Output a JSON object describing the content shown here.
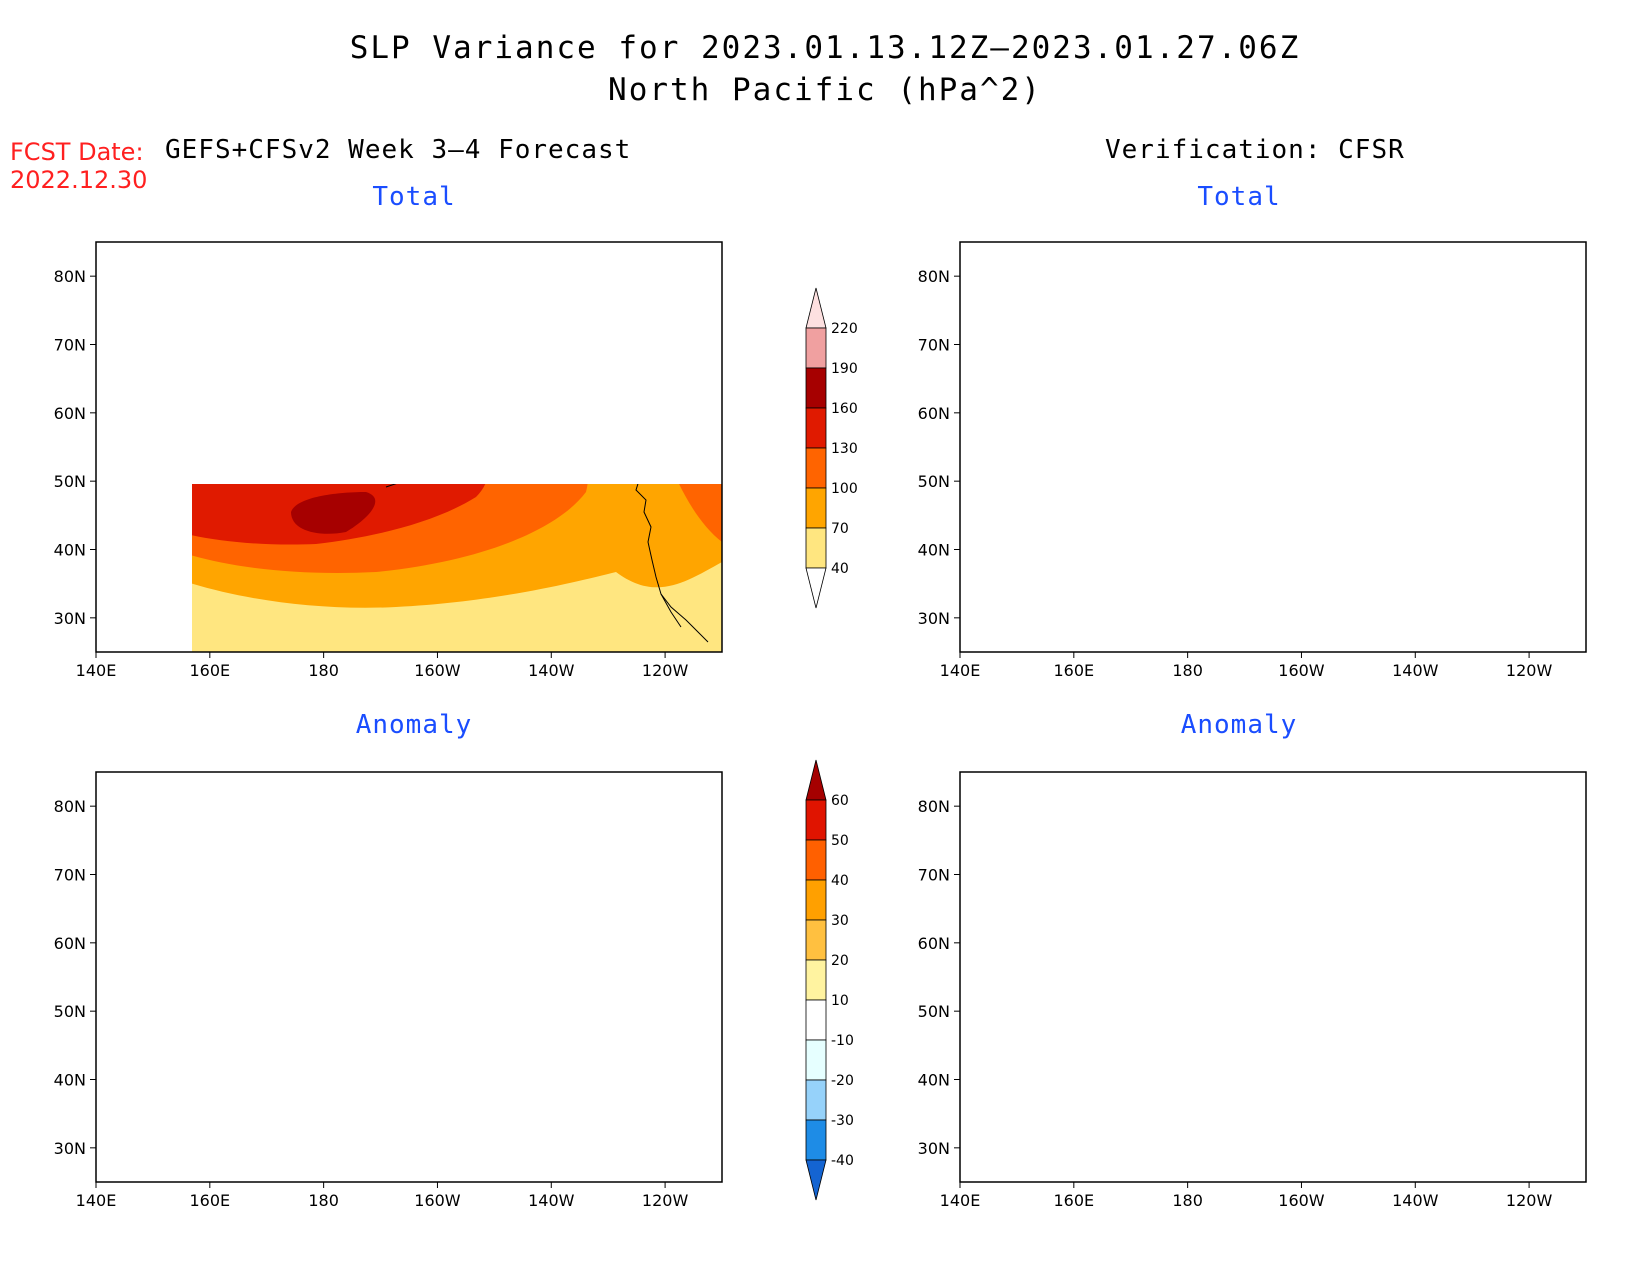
{
  "header": {
    "title_line1": "SLP Variance for 2023.01.13.12Z–2023.01.27.06Z",
    "title_line2": "North Pacific (hPa^2)",
    "fcst_label": "FCST Date:",
    "fcst_date": "2022.12.30"
  },
  "columns": {
    "left": "GEFS+CFSv2 Week 3–4 Forecast",
    "right": "Verification: CFSR"
  },
  "panels": {
    "fcst_total": "Total",
    "fcst_anom": "Anomaly",
    "verif_total": "Total",
    "verif_anom": "Anomaly"
  },
  "axes": {
    "lat_ticks": [
      "80N",
      "70N",
      "60N",
      "50N",
      "40N",
      "30N"
    ],
    "lon_ticks": [
      "140E",
      "160E",
      "180",
      "160W",
      "140W",
      "120W"
    ]
  },
  "colorbars": {
    "total": {
      "labels": [
        "40",
        "70",
        "100",
        "130",
        "160",
        "190",
        "220"
      ],
      "colors": [
        "#ffe680",
        "#ffa500",
        "#ff6400",
        "#e01a00",
        "#a60000",
        "#f0a0a0",
        "#fde0e0"
      ]
    },
    "anomaly": {
      "labels": [
        "-40",
        "-30",
        "-20",
        "-10",
        "10",
        "20",
        "30",
        "40",
        "50",
        "60"
      ],
      "colors": [
        "#1464d2",
        "#1e8ce6",
        "#96d2fa",
        "#e6ffff",
        "#ffffff",
        "#fff3a0",
        "#ffc040",
        "#ffa000",
        "#ff6000",
        "#e01400",
        "#a50000"
      ]
    }
  }
}
